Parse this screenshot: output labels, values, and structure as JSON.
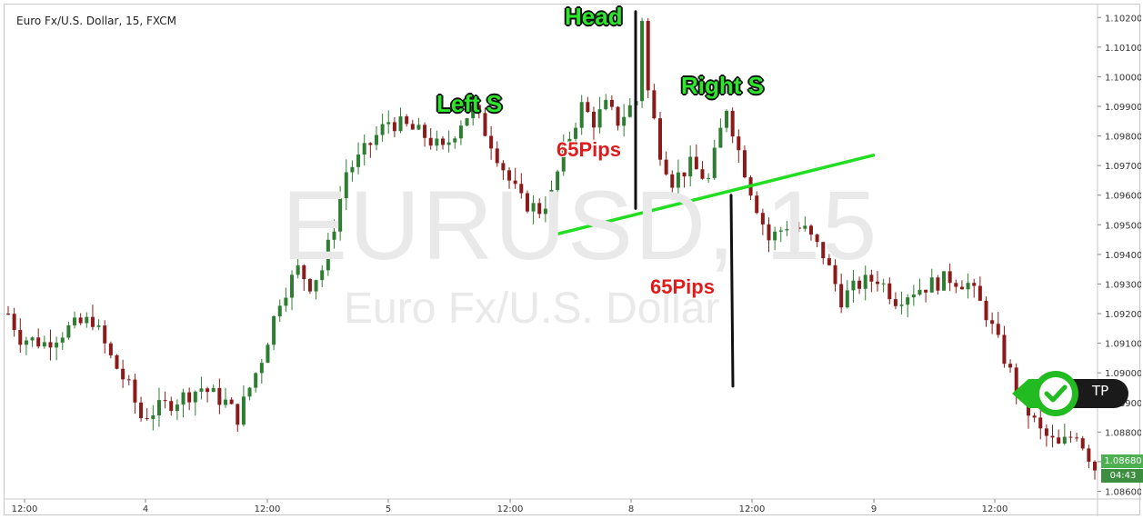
{
  "header": {
    "symbol_title": "Euro Fx/U.S. Dollar, 15, FXCM"
  },
  "watermark": {
    "symbol": "EURUSD, 15",
    "name": "Euro Fx/U.S. Dollar"
  },
  "annotations": {
    "head": "Head",
    "left_shoulder": "Left S",
    "right_shoulder": "Right S",
    "pips_top": "65Pips",
    "pips_bottom": "65Pips",
    "tp_label": "TP"
  },
  "current_price": {
    "price": "1.08680",
    "countdown": "04:43",
    "color": "#4caf50"
  },
  "colors": {
    "up_candle": "#2e7d32",
    "down_candle": "#8b1a1a",
    "neckline": "#22dd22",
    "measure_line": "#111111",
    "label_green": "#2ee52e",
    "label_red": "#e01b1b"
  },
  "chart_data": {
    "type": "candlestick",
    "title": "Euro Fx/U.S. Dollar, 15, FXCM",
    "y_axis": {
      "position": "right",
      "ticks": [
        "1.10200",
        "1.10100",
        "1.10000",
        "1.09900",
        "1.09800",
        "1.09700",
        "1.09600",
        "1.09500",
        "1.09400",
        "1.09300",
        "1.09200",
        "1.09100",
        "1.09000",
        "1.08900",
        "1.08800",
        "1.08700",
        "1.08600"
      ],
      "range": [
        1.0858,
        1.1025
      ]
    },
    "x_axis": {
      "ticks": [
        "12:00",
        "4",
        "12:00",
        "5",
        "12:00",
        "8",
        "12:00",
        "9",
        "12:00"
      ]
    },
    "close_path": [
      [
        0,
        1.092
      ],
      [
        2,
        1.0912
      ],
      [
        6,
        1.091
      ],
      [
        10,
        1.0915
      ],
      [
        14,
        1.0918
      ],
      [
        17,
        1.0905
      ],
      [
        20,
        1.0895
      ],
      [
        22,
        1.0885
      ],
      [
        25,
        1.0888
      ],
      [
        28,
        1.0891
      ],
      [
        32,
        1.0895
      ],
      [
        36,
        1.089
      ],
      [
        38,
        1.0885
      ],
      [
        40,
        1.0895
      ],
      [
        42,
        1.0905
      ],
      [
        45,
        1.0925
      ],
      [
        48,
        1.0935
      ],
      [
        50,
        1.093
      ],
      [
        52,
        1.0935
      ],
      [
        54,
        1.095
      ],
      [
        56,
        1.0968
      ],
      [
        58,
        1.0972
      ],
      [
        61,
        1.098
      ],
      [
        63,
        1.0985
      ],
      [
        66,
        1.0983
      ],
      [
        69,
        1.098
      ],
      [
        72,
        1.0975
      ],
      [
        75,
        1.0985
      ],
      [
        77,
        1.0989
      ],
      [
        80,
        1.0978
      ],
      [
        83,
        1.0965
      ],
      [
        85,
        1.0958
      ],
      [
        88,
        1.0955
      ],
      [
        90,
        1.096
      ],
      [
        92,
        1.0975
      ],
      [
        95,
        1.099
      ],
      [
        97,
        1.0985
      ],
      [
        99,
        1.099
      ],
      [
        101,
        1.0985
      ],
      [
        104,
        1.0992
      ],
      [
        105,
        1.102
      ],
      [
        106,
        1.0995
      ],
      [
        108,
        1.0975
      ],
      [
        110,
        1.0965
      ],
      [
        113,
        1.097
      ],
      [
        116,
        1.0965
      ],
      [
        119,
        1.099
      ],
      [
        121,
        1.0975
      ],
      [
        123,
        1.0962
      ],
      [
        126,
        1.0945
      ],
      [
        129,
        1.095
      ],
      [
        132,
        1.0948
      ],
      [
        135,
        1.094
      ],
      [
        138,
        1.0925
      ],
      [
        141,
        1.093
      ],
      [
        144,
        1.0932
      ],
      [
        147,
        1.0925
      ],
      [
        150,
        1.0928
      ],
      [
        153,
        1.093
      ],
      [
        156,
        1.0932
      ],
      [
        159,
        1.093
      ],
      [
        162,
        1.092
      ],
      [
        165,
        1.0905
      ],
      [
        168,
        1.089
      ],
      [
        171,
        1.088
      ],
      [
        174,
        1.0875
      ],
      [
        177,
        1.088
      ],
      [
        180,
        1.0868
      ]
    ],
    "neckline": {
      "start": {
        "candle": 90,
        "price": 1.0947
      },
      "end": {
        "candle": 140,
        "price": 1.09735
      }
    },
    "measure_lines": [
      {
        "candle": 105,
        "from": 1.1022,
        "to": 1.09555
      },
      {
        "candle": 120,
        "from": 1.096,
        "to": 1.08955
      }
    ]
  }
}
